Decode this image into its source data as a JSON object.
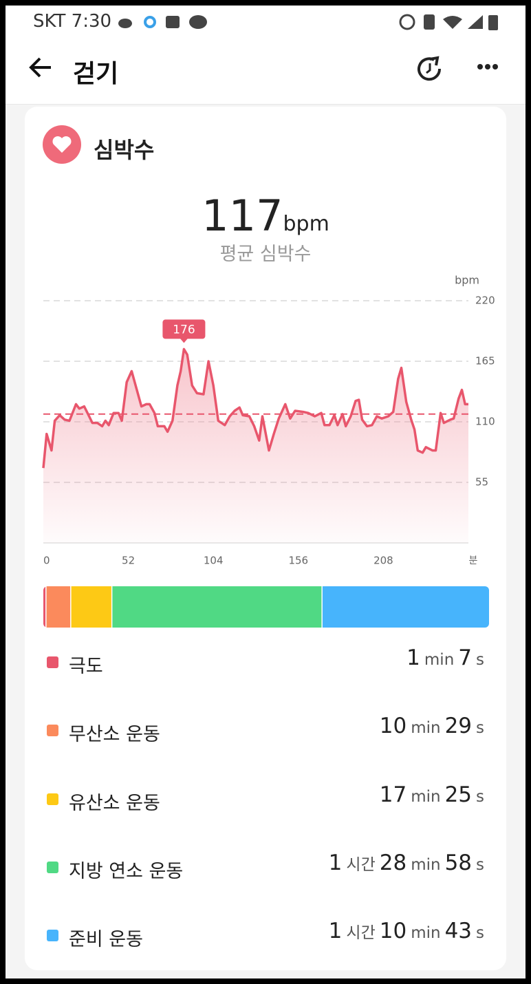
{
  "status_bar": {
    "carrier_time": "SKT 7:30"
  },
  "header": {
    "title": "걷기"
  },
  "card": {
    "title": "심박수",
    "average_unit": "bpm",
    "average_label": "평균 심박수"
  },
  "chart_data": {
    "type": "line",
    "y_label": "bpm",
    "x_unit": "분",
    "xlim": [
      0,
      260
    ],
    "xticks": [
      0,
      52,
      104,
      156,
      208
    ],
    "ylim": [
      0,
      220
    ],
    "yticks": [
      55,
      110,
      165,
      220
    ],
    "grid": true,
    "average": 117,
    "average_color": "#e8566c",
    "annotations": [
      {
        "x": 86,
        "value": 176
      }
    ],
    "x": [
      0,
      2,
      5,
      7,
      10,
      13,
      16,
      20,
      22,
      25,
      27,
      30,
      33,
      36,
      38,
      40,
      43,
      46,
      48,
      51,
      54,
      57,
      60,
      63,
      65,
      68,
      70,
      74,
      76,
      79,
      82,
      84,
      86,
      88,
      91,
      94,
      98,
      101,
      104,
      107,
      111,
      114,
      117,
      120,
      122,
      126,
      129,
      132,
      134,
      138,
      141,
      144,
      148,
      151,
      154,
      159,
      162,
      166,
      170,
      172,
      175,
      178,
      180,
      183,
      185,
      188,
      191,
      193,
      195,
      198,
      201,
      204,
      207,
      211,
      214,
      217,
      219,
      222,
      225,
      227,
      229,
      232,
      234,
      238,
      240,
      243,
      245,
      249,
      251,
      254,
      256,
      258,
      260
    ],
    "series": [
      {
        "name": "심박수",
        "color": "#e8566c",
        "values": [
          68,
          99,
          84,
          111,
          116,
          112,
          111,
          126,
          122,
          124,
          118,
          109,
          109,
          106,
          111,
          107,
          118,
          118,
          111,
          146,
          156,
          140,
          124,
          126,
          126,
          118,
          106,
          106,
          101,
          111,
          143,
          156,
          176,
          171,
          143,
          136,
          135,
          165,
          143,
          111,
          107,
          115,
          120,
          123,
          116,
          115,
          106,
          93,
          115,
          84,
          99,
          113,
          126,
          113,
          120,
          119,
          118,
          115,
          118,
          107,
          107,
          116,
          107,
          117,
          106,
          115,
          129,
          130,
          112,
          106,
          107,
          115,
          113,
          115,
          119,
          149,
          159,
          128,
          112,
          103,
          84,
          82,
          87,
          84,
          84,
          118,
          109,
          112,
          113,
          131,
          139,
          126,
          126
        ]
      }
    ]
  },
  "zones": {
    "units": {
      "hours": "시간",
      "minutes": "min",
      "seconds": "s"
    },
    "items": [
      {
        "name": "극도",
        "color": "#e8566c",
        "minutes": 1,
        "seconds": 7
      },
      {
        "name": "무산소 운동",
        "color": "#fb8a5c",
        "minutes": 10,
        "seconds": 29
      },
      {
        "name": "유산소 운동",
        "color": "#fdc915",
        "minutes": 17,
        "seconds": 25
      },
      {
        "name": "지방 연소 운동",
        "color": "#50d984",
        "hours": 1,
        "minutes": 28,
        "seconds": 58
      },
      {
        "name": "준비 운동",
        "color": "#47b4fc",
        "hours": 1,
        "minutes": 10,
        "seconds": 43
      }
    ]
  }
}
